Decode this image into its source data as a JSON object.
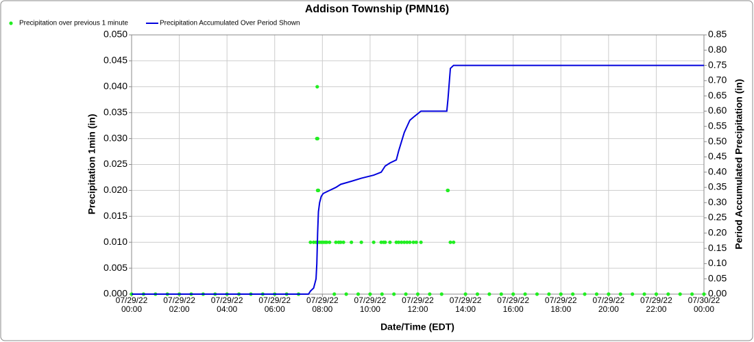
{
  "chart_data": {
    "type": "scatter+line",
    "title": "Addison Township (PMN16)",
    "x_label": "Date/Time (EDT)",
    "y_label": "Precipitation 1min (in)",
    "y2_label": "Period Accumulated Precipitation (in)",
    "grid": true,
    "legend": "top-left",
    "xlim": [
      "07/29/22 00:00",
      "07/30/22 00:00"
    ],
    "xticks": [
      "07/29/22 00:00",
      "07/29/22 02:00",
      "07/29/22 04:00",
      "07/29/22 06:00",
      "07/29/22 08:00",
      "07/29/22 10:00",
      "07/29/22 12:00",
      "07/29/22 14:00",
      "07/29/22 16:00",
      "07/29/22 18:00",
      "07/29/22 20:00",
      "07/29/22 22:00",
      "07/30/22 00:00"
    ],
    "ylim": [
      0,
      0.05
    ],
    "yticks": [
      {
        "value": 0,
        "label": "0.000"
      },
      {
        "value": 0.005,
        "label": "0.005"
      },
      {
        "value": 0.01,
        "label": "0.010"
      },
      {
        "value": 0.015,
        "label": "0.015"
      },
      {
        "value": 0.02,
        "label": "0.020"
      },
      {
        "value": 0.025,
        "label": "0.025"
      },
      {
        "value": 0.03,
        "label": "0.030"
      },
      {
        "value": 0.035,
        "label": "0.035"
      },
      {
        "value": 0.04,
        "label": "0.040"
      },
      {
        "value": 0.045,
        "label": "0.045"
      },
      {
        "value": 0.05,
        "label": "0.050"
      }
    ],
    "y2lim": [
      0,
      0.85
    ],
    "y2ticks": [
      {
        "value": 0,
        "label": "0.00"
      },
      {
        "value": 0.05,
        "label": "0.05"
      },
      {
        "value": 0.1,
        "label": "0.10"
      },
      {
        "value": 0.15,
        "label": "0.15"
      },
      {
        "value": 0.2,
        "label": "0.20"
      },
      {
        "value": 0.25,
        "label": "0.25"
      },
      {
        "value": 0.3,
        "label": "0.30"
      },
      {
        "value": 0.35,
        "label": "0.35"
      },
      {
        "value": 0.4,
        "label": "0.40"
      },
      {
        "value": 0.45,
        "label": "0.45"
      },
      {
        "value": 0.5,
        "label": "0.50"
      },
      {
        "value": 0.55,
        "label": "0.55"
      },
      {
        "value": 0.6,
        "label": "0.60"
      },
      {
        "value": 0.65,
        "label": "0.65"
      },
      {
        "value": 0.7,
        "label": "0.70"
      },
      {
        "value": 0.75,
        "label": "0.75"
      },
      {
        "value": 0.8,
        "label": "0.80"
      },
      {
        "value": 0.85,
        "label": "0.85"
      }
    ],
    "series": [
      {
        "name": "Precipitation over previous 1 minute",
        "type": "scatter",
        "color": "#22ee22",
        "x": [
          "07/29/22 00:00",
          "07/29/22 00:30",
          "07/29/22 01:00",
          "07/29/22 01:30",
          "07/29/22 02:00",
          "07/29/22 02:30",
          "07/29/22 03:00",
          "07/29/22 03:30",
          "07/29/22 04:00",
          "07/29/22 04:30",
          "07/29/22 05:00",
          "07/29/22 05:30",
          "07/29/22 06:00",
          "07/29/22 06:30",
          "07/29/22 07:00",
          "07/29/22 08:30",
          "07/29/22 09:00",
          "07/29/22 09:30",
          "07/29/22 10:00",
          "07/29/22 10:30",
          "07/29/22 11:00",
          "07/29/22 11:30",
          "07/29/22 12:00",
          "07/29/22 12:30",
          "07/29/22 13:00",
          "07/29/22 14:00",
          "07/29/22 14:30",
          "07/29/22 15:00",
          "07/29/22 15:30",
          "07/29/22 16:00",
          "07/29/22 16:30",
          "07/29/22 17:00",
          "07/29/22 17:30",
          "07/29/22 18:00",
          "07/29/22 18:30",
          "07/29/22 19:00",
          "07/29/22 19:30",
          "07/29/22 20:00",
          "07/29/22 20:30",
          "07/29/22 21:00",
          "07/29/22 21:30",
          "07/29/22 22:00",
          "07/29/22 22:30",
          "07/29/22 23:00",
          "07/29/22 23:30",
          "07/30/22 00:00",
          "07/29/22 07:47",
          "07/29/22 07:46",
          "07/29/22 07:48",
          "07/29/22 07:48",
          "07/29/22 07:49",
          "07/29/22 07:50",
          "07/29/22 13:15",
          "07/29/22 13:16",
          "07/29/22 07:30",
          "07/29/22 07:38",
          "07/29/22 07:44",
          "07/29/22 07:52",
          "07/29/22 07:57",
          "07/29/22 08:02",
          "07/29/22 08:07",
          "07/29/22 08:11",
          "07/29/22 08:18",
          "07/29/22 08:34",
          "07/29/22 08:41",
          "07/29/22 08:46",
          "07/29/22 08:53",
          "07/29/22 09:13",
          "07/29/22 09:38",
          "07/29/22 10:09",
          "07/29/22 10:28",
          "07/29/22 10:34",
          "07/29/22 10:38",
          "07/29/22 10:50",
          "07/29/22 11:06",
          "07/29/22 11:12",
          "07/29/22 11:19",
          "07/29/22 11:26",
          "07/29/22 11:33",
          "07/29/22 11:40",
          "07/29/22 11:49",
          "07/29/22 11:56",
          "07/29/22 12:08",
          "07/29/22 13:22",
          "07/29/22 13:30"
        ],
        "values": [
          0,
          0,
          0,
          0,
          0,
          0,
          0,
          0,
          0,
          0,
          0,
          0,
          0,
          0,
          0,
          0,
          0,
          0,
          0,
          0,
          0,
          0,
          0,
          0,
          0,
          0,
          0,
          0,
          0,
          0,
          0,
          0,
          0,
          0,
          0,
          0,
          0,
          0,
          0,
          0,
          0,
          0,
          0,
          0,
          0,
          0,
          0.04,
          0.03,
          0.03,
          0.02,
          0.02,
          0.02,
          0.02,
          0.02,
          0.01,
          0.01,
          0.01,
          0.01,
          0.01,
          0.01,
          0.01,
          0.01,
          0.01,
          0.01,
          0.01,
          0.01,
          0.01,
          0.01,
          0.01,
          0.01,
          0.01,
          0.01,
          0.01,
          0.01,
          0.01,
          0.01,
          0.01,
          0.01,
          0.01,
          0.01,
          0.01,
          0.01,
          0.01,
          0.01,
          0.01
        ]
      },
      {
        "name": "Precipitation Accumulated Over Period Shown",
        "type": "line",
        "axis": "y2",
        "color": "#0000dd",
        "x": [
          "07/29/22 00:00",
          "07/29/22 07:25",
          "07/29/22 07:30",
          "07/29/22 07:38",
          "07/29/22 07:44",
          "07/29/22 07:46",
          "07/29/22 07:48",
          "07/29/22 07:50",
          "07/29/22 07:53",
          "07/29/22 07:57",
          "07/29/22 08:02",
          "07/29/22 08:18",
          "07/29/22 08:34",
          "07/29/22 08:46",
          "07/29/22 09:13",
          "07/29/22 09:38",
          "07/29/22 10:09",
          "07/29/22 10:28",
          "07/29/22 10:38",
          "07/29/22 10:50",
          "07/29/22 11:06",
          "07/29/22 11:12",
          "07/29/22 11:19",
          "07/29/22 11:26",
          "07/29/22 11:33",
          "07/29/22 11:40",
          "07/29/22 11:49",
          "07/29/22 12:08",
          "07/29/22 13:13",
          "07/29/22 13:16",
          "07/29/22 13:22",
          "07/29/22 13:30",
          "07/30/22 00:00"
        ],
        "values": [
          0,
          0,
          0.01,
          0.02,
          0.05,
          0.1,
          0.2,
          0.27,
          0.3,
          0.32,
          0.33,
          0.34,
          0.35,
          0.36,
          0.37,
          0.38,
          0.39,
          0.4,
          0.42,
          0.43,
          0.44,
          0.47,
          0.5,
          0.53,
          0.55,
          0.57,
          0.58,
          0.6,
          0.6,
          0.64,
          0.74,
          0.75,
          0.75
        ]
      }
    ]
  }
}
